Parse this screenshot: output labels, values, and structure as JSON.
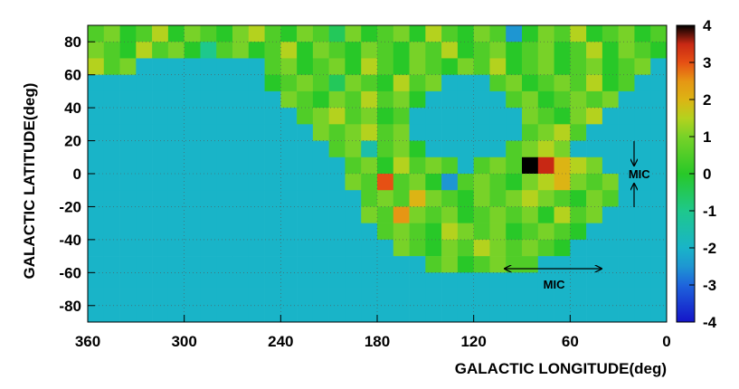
{
  "chart_data": {
    "type": "heatmap",
    "xlabel": "GALACTIC LONGITUDE(deg)",
    "ylabel": "GALACTIC LATITUDE(deg)",
    "xlim": [
      360,
      0
    ],
    "ylim": [
      -90,
      90
    ],
    "xticks": [
      360,
      300,
      240,
      180,
      120,
      60,
      0
    ],
    "yticks": [
      -80,
      -60,
      -40,
      -20,
      0,
      20,
      40,
      60,
      80
    ],
    "zlim": [
      -4,
      4
    ],
    "zticks": [
      -4,
      -3,
      -2,
      -1,
      0,
      1,
      2,
      3,
      4
    ],
    "grid": true,
    "colorscale": [
      {
        "value": -4,
        "color": "#1414c8"
      },
      {
        "value": -3,
        "color": "#1e64dc"
      },
      {
        "value": -2.5,
        "color": "#1e96d2"
      },
      {
        "value": -2,
        "color": "#19b4c8"
      },
      {
        "value": -1,
        "color": "#1ec88c"
      },
      {
        "value": 0,
        "color": "#28c828"
      },
      {
        "value": 1,
        "color": "#78d228"
      },
      {
        "value": 1.5,
        "color": "#b4d21e"
      },
      {
        "value": 2,
        "color": "#dcb414"
      },
      {
        "value": 2.5,
        "color": "#e69614"
      },
      {
        "value": 3,
        "color": "#e65014"
      },
      {
        "value": 3.5,
        "color": "#c82814"
      },
      {
        "value": 4,
        "color": "#000000"
      }
    ],
    "annotations": [
      {
        "text": "MIC",
        "x": 17,
        "y": 0
      },
      {
        "text": "MIC",
        "x": 70,
        "y": -67
      }
    ],
    "x": [
      355,
      345,
      335,
      325,
      315,
      305,
      295,
      285,
      275,
      265,
      255,
      245,
      235,
      225,
      215,
      205,
      195,
      185,
      175,
      165,
      155,
      145,
      135,
      125,
      115,
      105,
      95,
      85,
      75,
      65,
      55,
      45,
      35,
      25,
      15,
      5
    ],
    "y": [
      85,
      75,
      65,
      55,
      45,
      35,
      25,
      15,
      5,
      -5,
      -15,
      -25,
      -35,
      -45,
      -55,
      -65,
      -75,
      -85
    ],
    "z": [
      [
        0.5,
        1,
        0,
        0.5,
        1.5,
        0,
        1,
        0.5,
        0,
        1,
        1.5,
        0.5,
        0,
        1,
        0.5,
        -0.5,
        1,
        0,
        0.5,
        1,
        0,
        1.5,
        0.5,
        0,
        1,
        0.5,
        -2.5,
        0,
        1,
        0.5,
        1.5,
        0,
        0.5,
        1,
        0,
        0.5
      ],
      [
        1,
        0.5,
        0,
        1.5,
        0.5,
        1,
        0,
        -1,
        0.5,
        1,
        0,
        0.5,
        1.5,
        0,
        1,
        0.5,
        0,
        1,
        0.5,
        0,
        1,
        0.5,
        1.5,
        0,
        0.5,
        1,
        0,
        0.5,
        1,
        0,
        0.5,
        1.5,
        0,
        1,
        0.5,
        0
      ],
      [
        1.5,
        0.5,
        1,
        -2,
        -2,
        -2,
        -2,
        -2,
        -2,
        -2,
        -2,
        0.5,
        1,
        0,
        0.5,
        1,
        0,
        1.5,
        0.5,
        0,
        1,
        0.5,
        0,
        1,
        0.5,
        1.5,
        0,
        0.5,
        1,
        0,
        0.5,
        1,
        0,
        0.5,
        1,
        -2
      ],
      [
        -2,
        -2,
        -2,
        -2,
        -2,
        -2,
        -2,
        -2,
        -2,
        -2,
        -2,
        0,
        0.5,
        1,
        0.5,
        -0.5,
        1,
        0.5,
        0,
        1.5,
        0.5,
        1,
        -2,
        -2,
        -2,
        0.5,
        1,
        0,
        0.5,
        1,
        0.5,
        1.5,
        0,
        0.5,
        -2,
        -2
      ],
      [
        -2,
        -2,
        -2,
        -2,
        -2,
        -2,
        -2,
        -2,
        -2,
        -2,
        -2,
        -2,
        1,
        0.5,
        0,
        1,
        0.5,
        1.5,
        0.5,
        1,
        0,
        -2,
        -2,
        -2,
        -2,
        -2,
        0.5,
        1,
        0,
        0.5,
        1,
        0.5,
        1,
        -2,
        -2,
        -2
      ],
      [
        -2,
        -2,
        -2,
        -2,
        -2,
        -2,
        -2,
        -2,
        -2,
        -2,
        -2,
        -2,
        -2,
        0.5,
        1,
        1.5,
        0.5,
        1,
        0,
        0.5,
        -2,
        -2,
        -2,
        -2,
        -2,
        -2,
        -2,
        1,
        0.5,
        0,
        1,
        1.5,
        -2,
        -2,
        -2,
        -2
      ],
      [
        -2,
        -2,
        -2,
        -2,
        -2,
        -2,
        -2,
        -2,
        -2,
        -2,
        -2,
        -2,
        -2,
        -2,
        1,
        0.5,
        1,
        1.5,
        0.5,
        1,
        -2,
        -2,
        -2,
        -2,
        -2,
        -2,
        -2,
        0.5,
        1,
        1.5,
        0.5,
        -2,
        -2,
        -2,
        -2,
        -2
      ],
      [
        -2,
        -2,
        -2,
        -2,
        -2,
        -2,
        -2,
        -2,
        -2,
        -2,
        -2,
        -2,
        -2,
        -2,
        -2,
        0.5,
        1,
        -1.5,
        0.5,
        1,
        0,
        -2,
        -2,
        -2,
        -2,
        -2,
        0.5,
        1,
        1.5,
        1,
        -2,
        -2,
        -2,
        -2,
        -2,
        -2
      ],
      [
        -2,
        -2,
        -2,
        -2,
        -2,
        -2,
        -2,
        -2,
        -2,
        -2,
        -2,
        -2,
        -2,
        -2,
        -2,
        -2,
        0.5,
        1,
        0,
        1.5,
        0.5,
        1,
        0.5,
        -2,
        0.5,
        1,
        0.5,
        4,
        3.5,
        2,
        1.5,
        1,
        -2,
        -2,
        -2,
        -2
      ],
      [
        -2,
        -2,
        -2,
        -2,
        -2,
        -2,
        -2,
        -2,
        -2,
        -2,
        -2,
        -2,
        -2,
        -2,
        -2,
        -2,
        1,
        0.5,
        3,
        0.5,
        1,
        0,
        -2.5,
        0.5,
        1,
        0.5,
        0,
        1,
        1.5,
        2,
        1,
        0.5,
        1,
        -2,
        -2,
        -2
      ],
      [
        -2,
        -2,
        -2,
        -2,
        -2,
        -2,
        -2,
        -2,
        -2,
        -2,
        -2,
        -2,
        -2,
        -2,
        -2,
        -2,
        -2,
        0.5,
        1,
        0.5,
        2,
        1,
        0.5,
        0,
        1,
        0.5,
        1,
        1.5,
        1,
        0.5,
        0,
        1,
        0.5,
        -2,
        -2,
        -2
      ],
      [
        -2,
        -2,
        -2,
        -2,
        -2,
        -2,
        -2,
        -2,
        -2,
        -2,
        -2,
        -2,
        -2,
        -2,
        -2,
        -2,
        -2,
        1,
        0.5,
        2.5,
        1,
        0.5,
        1,
        0,
        0.5,
        1,
        0.5,
        1,
        0,
        1.5,
        0.5,
        1,
        -2,
        -2,
        -2,
        -2
      ],
      [
        -2,
        -2,
        -2,
        -2,
        -2,
        -2,
        -2,
        -2,
        -2,
        -2,
        -2,
        -2,
        -2,
        -2,
        -2,
        -2,
        -2,
        -2,
        0.5,
        1,
        0.5,
        0,
        1.5,
        1,
        0.5,
        1,
        0,
        0.5,
        1,
        0.5,
        0,
        -2,
        -2,
        -2,
        -2,
        -2
      ],
      [
        -2,
        -2,
        -2,
        -2,
        -2,
        -2,
        -2,
        -2,
        -2,
        -2,
        -2,
        -2,
        -2,
        -2,
        -2,
        -2,
        -2,
        -2,
        -2,
        1,
        0.5,
        0,
        1,
        0.5,
        1.5,
        1,
        0.5,
        1,
        0.5,
        0,
        -2,
        -2,
        -2,
        -2,
        -2,
        -2
      ],
      [
        -2,
        -2,
        -2,
        -2,
        -2,
        -2,
        -2,
        -2,
        -2,
        -2,
        -2,
        -2,
        -2,
        -2,
        -2,
        -2,
        -2,
        -2,
        -2,
        -2,
        -2,
        0.5,
        1,
        0,
        0.5,
        1,
        0.5,
        0.5,
        -2,
        -2,
        -2,
        -2,
        -2,
        -2,
        -2,
        -2
      ],
      [
        -2,
        -2,
        -2,
        -2,
        -2,
        -2,
        -2,
        -2,
        -2,
        -2,
        -2,
        -2,
        -2,
        -2,
        -2,
        -2,
        -2,
        -2,
        -2,
        -2,
        -2,
        -2,
        -2,
        -2,
        -2,
        -2,
        -2,
        -2,
        -2,
        -2,
        -2,
        -2,
        -2,
        -2,
        -2,
        -2
      ],
      [
        -2,
        -2,
        -2,
        -2,
        -2,
        -2,
        -2,
        -2,
        -2,
        -2,
        -2,
        -2,
        -2,
        -2,
        -2,
        -2,
        -2,
        -2,
        -2,
        -2,
        -2,
        -2,
        -2,
        -2,
        -2,
        -2,
        -2,
        -2,
        -2,
        -2,
        -2,
        -2,
        -2,
        -2,
        -2,
        -2
      ],
      [
        -2,
        -2,
        -2,
        -2,
        -2,
        -2,
        -2,
        -2,
        -2,
        -2,
        -2,
        -2,
        -2,
        -2,
        -2,
        -2,
        -2,
        -2,
        -2,
        -2,
        -2,
        -2,
        -2,
        -2,
        -2,
        -2,
        -2,
        -2,
        -2,
        -2,
        -2,
        -2,
        -2,
        -2,
        -2,
        -2
      ]
    ]
  }
}
